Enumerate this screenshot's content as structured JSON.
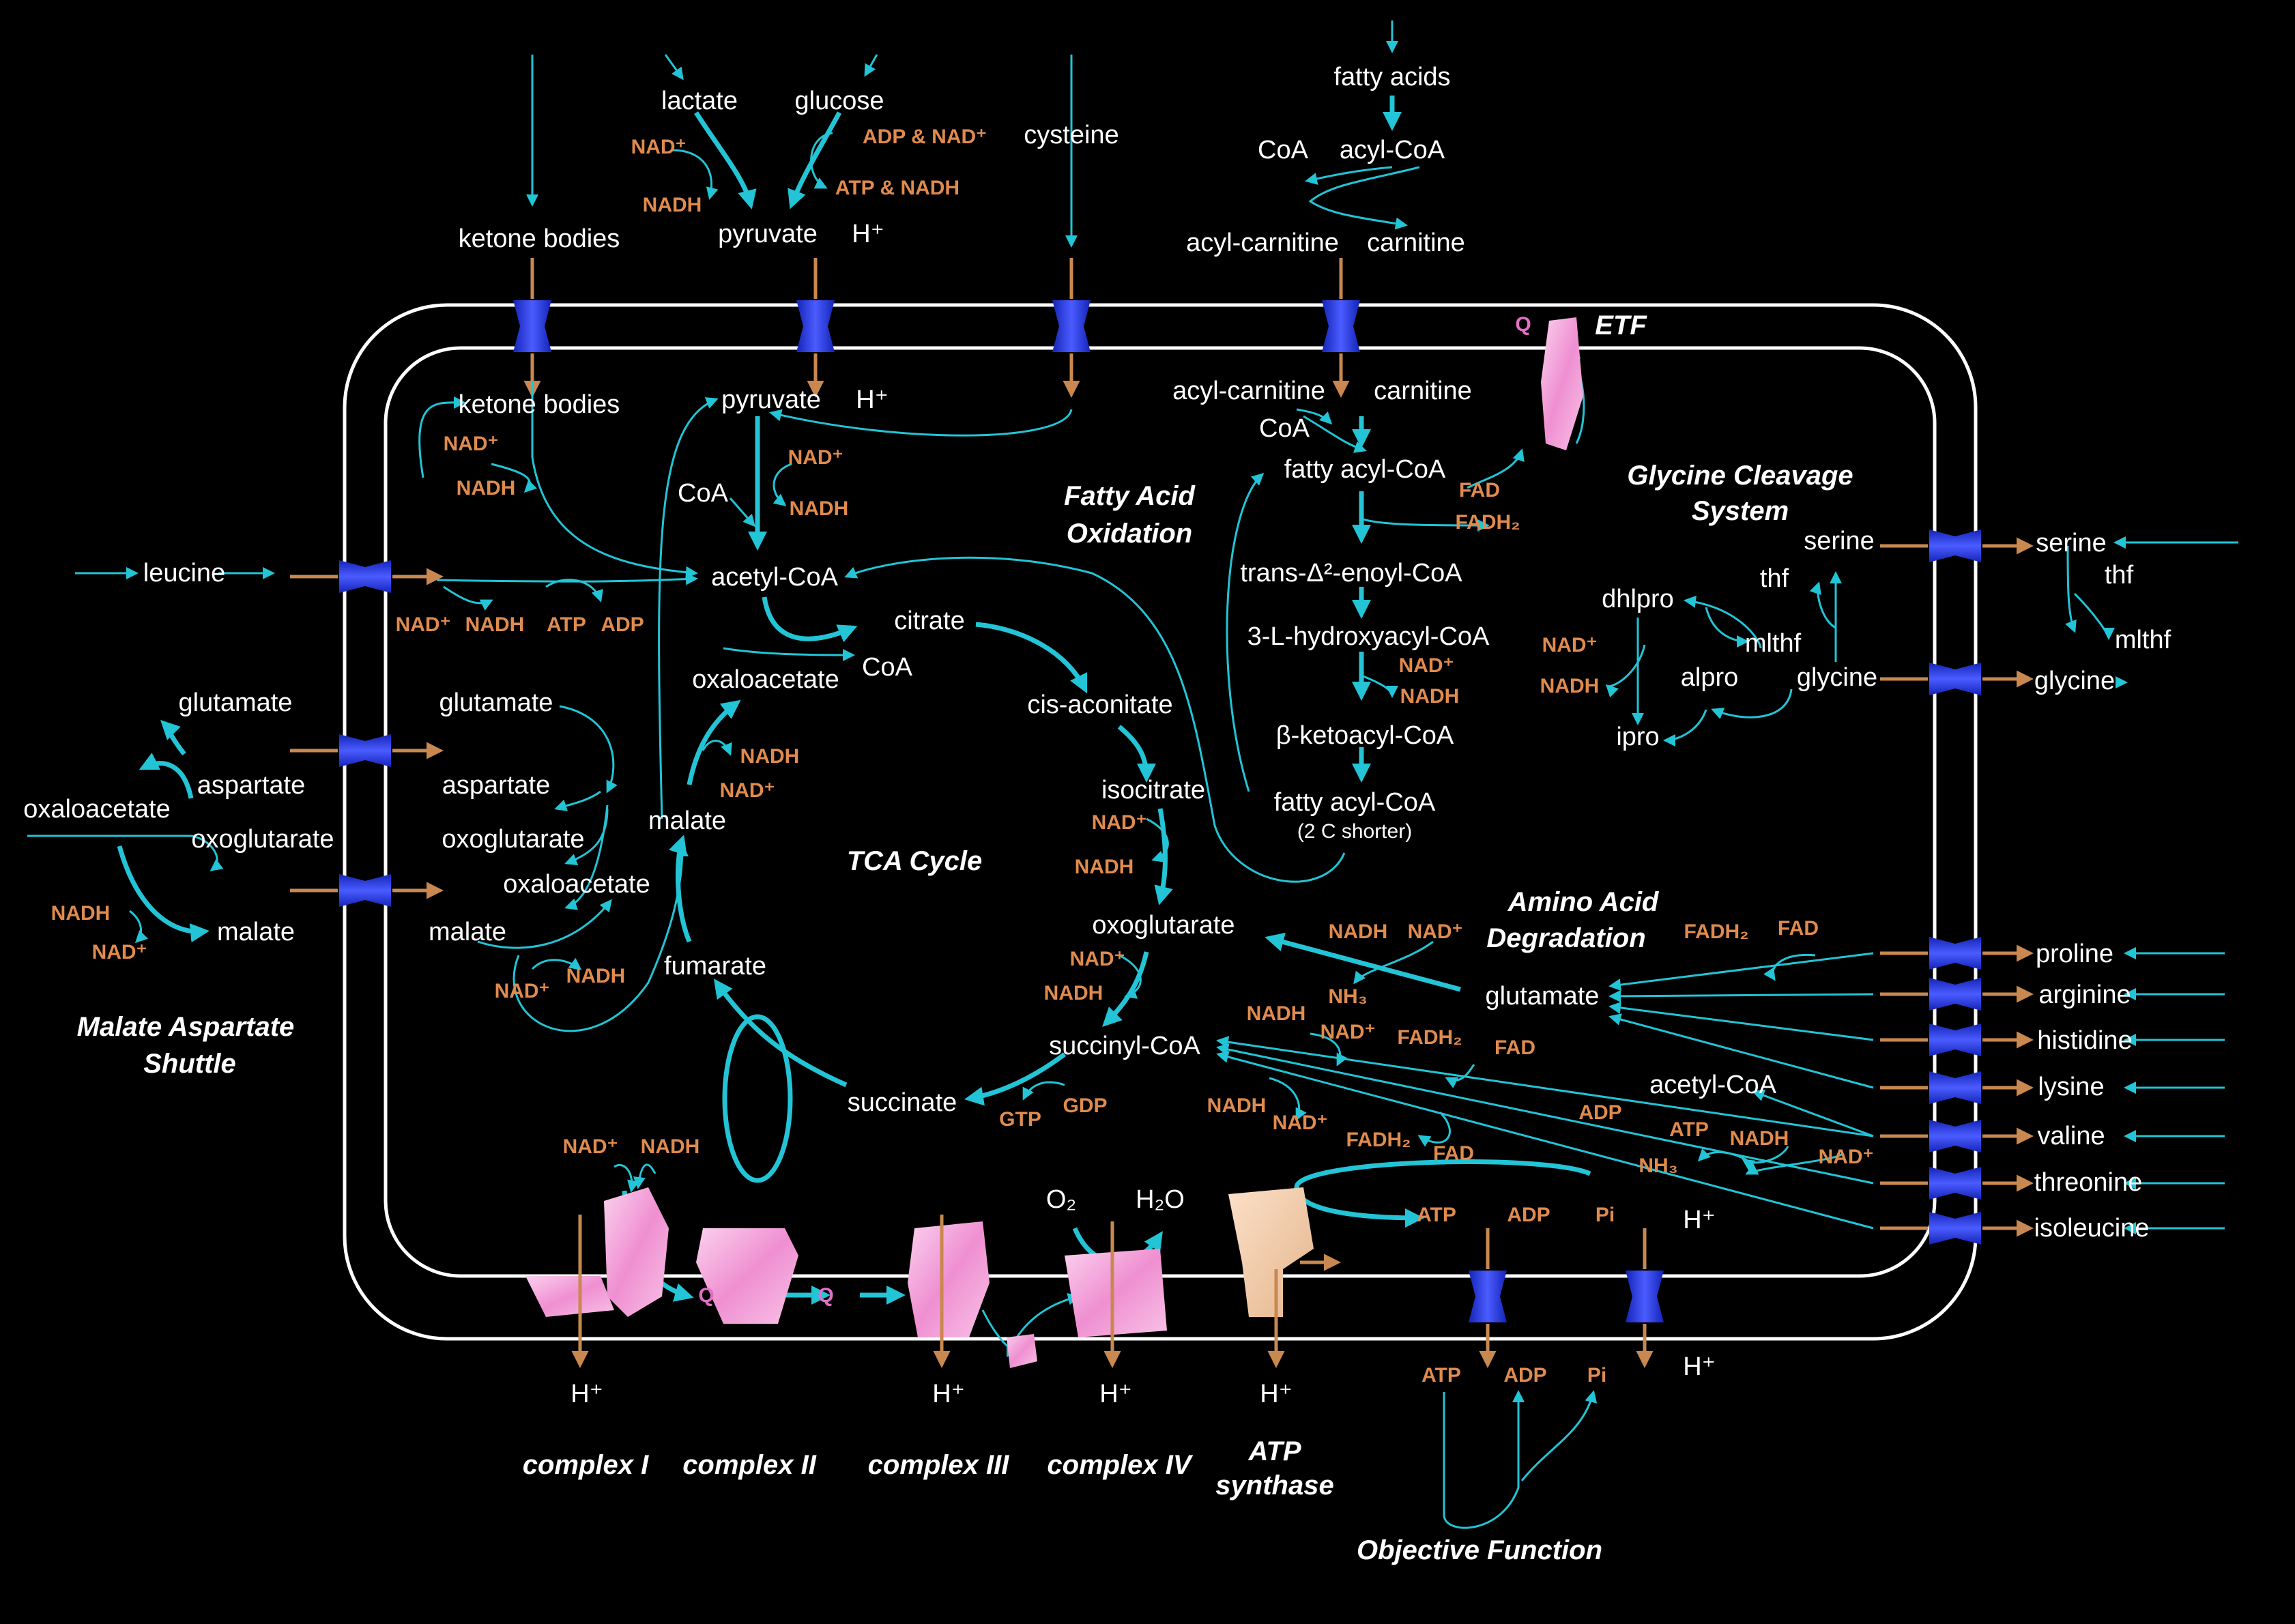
{
  "colors": {
    "background": "#000000",
    "arrow": "#22c4d6",
    "cofactor": "#e08b4e",
    "metabolite": "#ffffff",
    "membrane": "#ffffff",
    "transporter": "#2b3bd8",
    "complex": "#f1a9dc"
  },
  "labels": {
    "fao": [
      "Fatty Acid",
      "Oxidation"
    ],
    "gcs": [
      "Glycine Cleavage",
      "System"
    ],
    "tca": "TCA Cycle",
    "aad": [
      "Amino Acid",
      "Degradation"
    ],
    "mas": [
      "Malate Aspartate",
      "Shuttle"
    ],
    "etf": "ETF",
    "complex1": "complex I",
    "complex2": "complex II",
    "complex3": "complex III",
    "complex4": "complex IV",
    "atpsyn": [
      "ATP",
      "synthase"
    ],
    "objective": "Objective Function"
  },
  "outside": {
    "lactate": "lactate",
    "glucose": "glucose",
    "cysteine": "cysteine",
    "fatty_acids": "fatty acids",
    "coa": "CoA",
    "acyl_coa": "acyl-CoA",
    "acyl_carnitine": "acyl-carnitine",
    "carnitine": "carnitine",
    "ketone_bodies": "ketone bodies",
    "pyruvate": "pyruvate",
    "leucine": "leucine",
    "glutamate": "glutamate",
    "aspartate": "aspartate",
    "oxaloacetate": "oxaloacetate",
    "oxoglutarate": "oxoglutarate",
    "malate": "malate",
    "serine": "serine",
    "thf": "thf",
    "mlthf": "mlthf",
    "glycine": "glycine",
    "proline": "proline",
    "arginine": "arginine",
    "histidine": "histidine",
    "lysine": "lysine",
    "valine": "valine",
    "threonine": "threonine",
    "isoleucine": "isoleucine"
  },
  "inside": {
    "ketone_bodies": "ketone bodies",
    "pyruvate": "pyruvate",
    "acetyl_coa": "acetyl-CoA",
    "coa": "CoA",
    "citrate": "citrate",
    "cis_aconitate": "cis-aconitate",
    "isocitrate": "isocitrate",
    "oxoglutarate": "oxoglutarate",
    "succinyl_coa": "succinyl-CoA",
    "succinate": "succinate",
    "fumarate": "fumarate",
    "malate": "malate",
    "oxaloacetate": "oxaloacetate",
    "glutamate": "glutamate",
    "aspartate": "aspartate",
    "mas_oxoglutarate": "oxoglutarate",
    "mas_oxaloacetate": "oxaloacetate",
    "mas_malate": "malate",
    "acyl_carnitine": "acyl-carnitine",
    "carnitine": "carnitine",
    "fatty_acyl_coa": "fatty acyl-CoA",
    "enoyl_coa": "trans-Δ²-enoyl-CoA",
    "hydroxyacyl_coa": "3-L-hydroxyacyl-CoA",
    "ketoacyl_coa": "β-ketoacyl-CoA",
    "fatty_acyl_coa2": "fatty acyl-CoA",
    "shorter": "(2 C shorter)",
    "serine": "serine",
    "thf": "thf",
    "mlthf": "mlthf",
    "glycine": "glycine",
    "dhlpro": "dhlpro",
    "alpro": "alpro",
    "ipro": "ipro",
    "aa_glutamate": "glutamate",
    "aa_acetyl_coa": "acetyl-CoA",
    "o2": "O₂",
    "h2o": "H₂O",
    "q": "Q"
  },
  "cofactors": {
    "nad": "NAD⁺",
    "nadh": "NADH",
    "fad": "FAD",
    "fadh2": "FADH₂",
    "atp": "ATP",
    "adp": "ADP",
    "gtp": "GTP",
    "gdp": "GDP",
    "pi": "Pi",
    "nh3": "NH₃",
    "adp_nad": "ADP & NAD⁺",
    "atp_nadh": "ATP & NADH",
    "hplus": "H⁺"
  }
}
